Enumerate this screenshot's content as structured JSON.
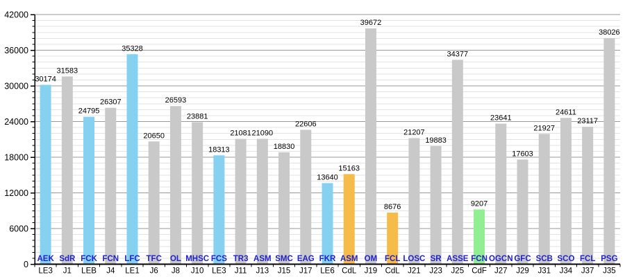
{
  "chart": {
    "background": "#ffffff",
    "colors": {
      "bar_gray": "#c9c9c9",
      "bar_blue": "#87d1f0",
      "bar_orange": "#f6bc49",
      "bar_green": "#92ee92",
      "team_label": "#2020cc",
      "value_label": "#000000",
      "match_label": "#000000",
      "axis": "#000000",
      "grid_major": "#999999",
      "grid_minor": "#e3e3e3"
    }
  },
  "chart_data": {
    "type": "bar",
    "title": "",
    "xlabel": "",
    "ylabel": "",
    "ylim": [
      0,
      42000
    ],
    "y_major_step": 6000,
    "y_minor_step": 1000,
    "y_tick_labels": [
      "0",
      "6000",
      "12000",
      "18000",
      "24000",
      "30000",
      "36000",
      "42000"
    ],
    "grid": true,
    "legend": "none",
    "bars": [
      {
        "team": "AEK",
        "match": "LE3",
        "value": 30174,
        "color": "blue"
      },
      {
        "team": "SdR",
        "match": "J1",
        "value": 31583,
        "color": "gray"
      },
      {
        "team": "FCK",
        "match": "LEB",
        "value": 24795,
        "color": "blue"
      },
      {
        "team": "FCN",
        "match": "J4",
        "value": 26307,
        "color": "gray"
      },
      {
        "team": "LFC",
        "match": "LE1",
        "value": 35328,
        "color": "blue"
      },
      {
        "team": "TFC",
        "match": "J6",
        "value": 20650,
        "color": "gray"
      },
      {
        "team": "OL",
        "match": "J8",
        "value": 26593,
        "color": "gray"
      },
      {
        "team": "MHSC",
        "match": "J10",
        "value": 23881,
        "color": "gray"
      },
      {
        "team": "FCS",
        "match": "LE3",
        "value": 18313,
        "color": "blue"
      },
      {
        "team": "TR3",
        "match": "J11",
        "value": 21081,
        "color": "gray"
      },
      {
        "team": "ASM",
        "match": "J13",
        "value": 21090,
        "color": "gray"
      },
      {
        "team": "SMC",
        "match": "J15",
        "value": 18830,
        "color": "gray"
      },
      {
        "team": "EAG",
        "match": "J17",
        "value": 22606,
        "color": "gray"
      },
      {
        "team": "FKR",
        "match": "LE6",
        "value": 13640,
        "color": "blue"
      },
      {
        "team": "ASM",
        "match": "CdL",
        "value": 15163,
        "color": "orange"
      },
      {
        "team": "OM",
        "match": "J19",
        "value": 39672,
        "color": "gray"
      },
      {
        "team": "FCL",
        "match": "CdL",
        "value": 8676,
        "color": "orange"
      },
      {
        "team": "LOSC",
        "match": "J21",
        "value": 21207,
        "color": "gray"
      },
      {
        "team": "SR",
        "match": "J23",
        "value": 19883,
        "color": "gray"
      },
      {
        "team": "ASSE",
        "match": "J25",
        "value": 34377,
        "color": "gray"
      },
      {
        "team": "FCN",
        "match": "CdF",
        "value": 9207,
        "color": "green"
      },
      {
        "team": "OGCN",
        "match": "J27",
        "value": 23641,
        "color": "gray"
      },
      {
        "team": "GFC",
        "match": "J29",
        "value": 17603,
        "color": "gray"
      },
      {
        "team": "SCB",
        "match": "J31",
        "value": 21927,
        "color": "gray"
      },
      {
        "team": "SCO",
        "match": "J34",
        "value": 24611,
        "color": "gray"
      },
      {
        "team": "FCL",
        "match": "J37",
        "value": 23117,
        "color": "gray"
      },
      {
        "team": "PSG",
        "match": "J35",
        "value": 38026,
        "color": "gray"
      }
    ]
  }
}
